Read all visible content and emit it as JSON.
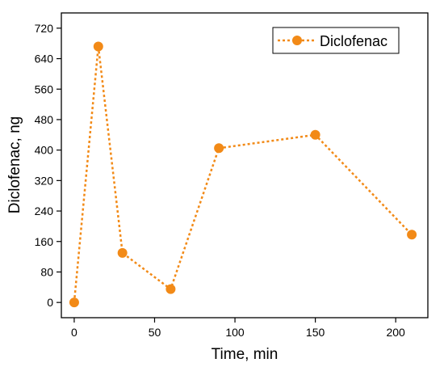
{
  "chart_data": {
    "type": "line",
    "title": "",
    "xlabel": "Time, min",
    "ylabel": "Diclofenac, ng",
    "xlim": [
      -8,
      220
    ],
    "ylim": [
      -40,
      760
    ],
    "xticks": [
      0,
      50,
      100,
      150,
      200
    ],
    "yticks": [
      0,
      80,
      160,
      240,
      320,
      400,
      480,
      560,
      640,
      720
    ],
    "grid": false,
    "legend_position": "top-right",
    "series": [
      {
        "name": "Diclofenac",
        "color": "#F28A17",
        "line_style": "dotted",
        "marker": "circle",
        "x": [
          0,
          15,
          30,
          60,
          90,
          150,
          210
        ],
        "y": [
          0,
          672,
          130,
          35,
          405,
          440,
          178
        ]
      }
    ]
  }
}
